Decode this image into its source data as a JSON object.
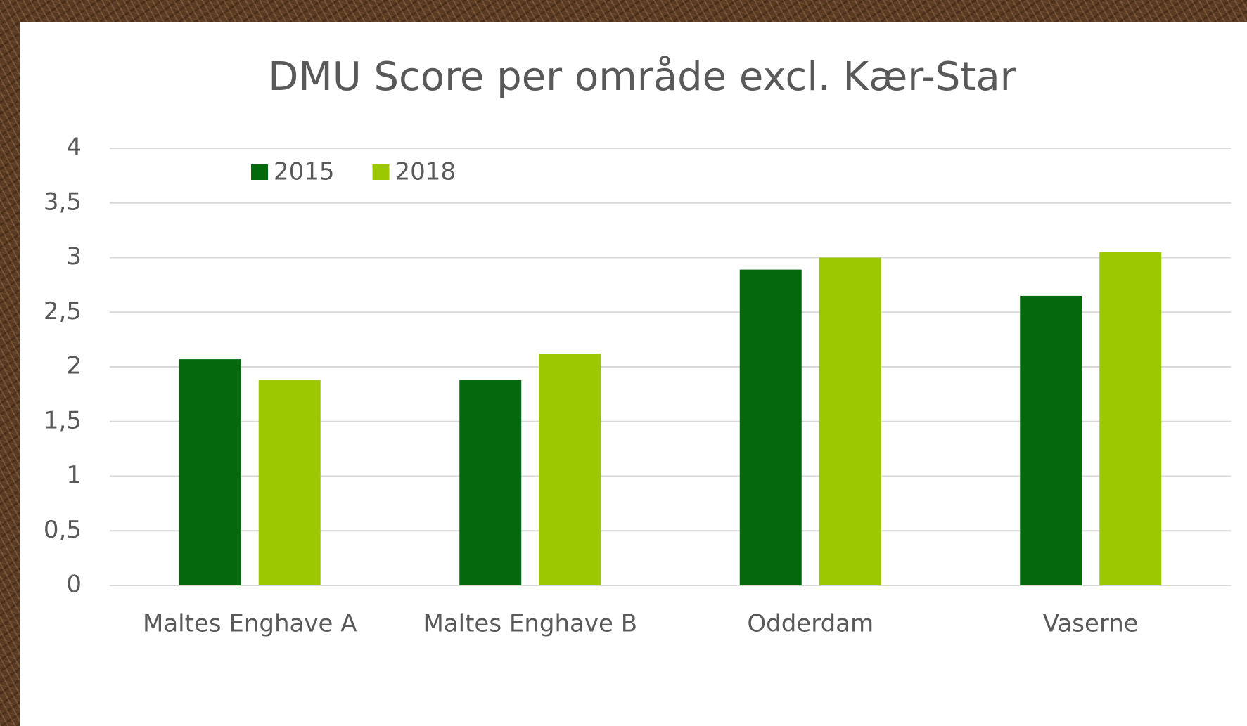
{
  "chart_data": {
    "type": "bar",
    "title": "DMU Score per område excl. Kær-Star",
    "categories": [
      "Maltes Enghave A",
      "Maltes Enghave B",
      "Odderdam",
      "Vaserne"
    ],
    "series": [
      {
        "name": "2015",
        "color": "#04690c",
        "values": [
          2.07,
          1.88,
          2.89,
          2.65
        ]
      },
      {
        "name": "2018",
        "color": "#9bc800",
        "values": [
          1.88,
          2.12,
          3.0,
          3.05
        ]
      }
    ],
    "ylim": [
      0,
      4
    ],
    "yticks": [
      0,
      {
        "value": 0.5,
        "label": "0,5"
      },
      1,
      {
        "value": 1.5,
        "label": "1,5"
      },
      2,
      {
        "value": 2.5,
        "label": "2,5"
      },
      3,
      {
        "value": 3.5,
        "label": "3,5"
      },
      4
    ],
    "grid": true,
    "legend": "top-left"
  }
}
